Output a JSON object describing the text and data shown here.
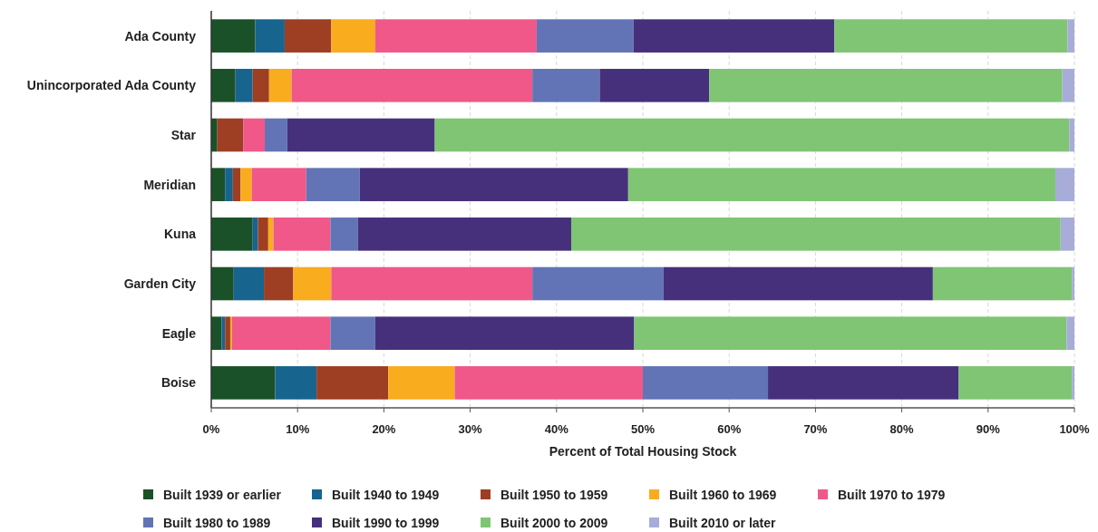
{
  "chart_data": {
    "type": "bar",
    "orientation": "horizontal",
    "stacked": true,
    "xlabel": "Percent of Total Housing Stock",
    "categories": [
      "Ada County",
      "Unincorporated Ada County",
      "Star",
      "Meridian",
      "Kuna",
      "Garden City",
      "Eagle",
      "Boise"
    ],
    "series": [
      {
        "name": "Built 1939 or earlier",
        "color": "#1b5128",
        "values": [
          5.1,
          2.8,
          0.7,
          1.6,
          4.8,
          2.6,
          1.2,
          7.4
        ]
      },
      {
        "name": "Built 1940 to 1949",
        "color": "#17648f",
        "values": [
          3.4,
          2.0,
          0,
          0.9,
          0.6,
          3.5,
          0.4,
          4.8
        ]
      },
      {
        "name": "Built 1950 to 1959",
        "color": "#9e3e22",
        "values": [
          5.4,
          1.9,
          3.0,
          0.9,
          1.2,
          3.4,
          0.6,
          8.3
        ]
      },
      {
        "name": "Built 1960 to 1969",
        "color": "#f8ac1e",
        "values": [
          5.1,
          2.6,
          0,
          1.3,
          0.6,
          4.4,
          0.2,
          7.7
        ]
      },
      {
        "name": "Built 1970 to 1979",
        "color": "#ef5888",
        "values": [
          18.7,
          27.9,
          2.5,
          6.3,
          6.6,
          23.3,
          11.4,
          21.8
        ]
      },
      {
        "name": "Built 1980 to 1989",
        "color": "#6274b6",
        "values": [
          11.2,
          7.8,
          2.6,
          6.2,
          3.2,
          15.2,
          5.2,
          14.5
        ]
      },
      {
        "name": "Built 1990 to 1999",
        "color": "#46307c",
        "values": [
          23.3,
          12.7,
          17.1,
          31.1,
          24.7,
          31.2,
          30.0,
          22.1
        ]
      },
      {
        "name": "Built 2000 to 2009",
        "color": "#7fc574",
        "values": [
          27.0,
          40.9,
          73.5,
          49.5,
          56.7,
          16.1,
          50.1,
          13.1
        ]
      },
      {
        "name": "Built 2010 or later",
        "color": "#a8acd8",
        "values": [
          0.8,
          1.4,
          0.6,
          2.2,
          1.6,
          0.3,
          0.9,
          0.3
        ]
      }
    ],
    "xlim": [
      0,
      100
    ],
    "xticks": [
      {
        "value": 0,
        "label": "0%"
      },
      {
        "value": 10,
        "label": "10%"
      },
      {
        "value": 20,
        "label": "20%"
      },
      {
        "value": 30,
        "label": "30%"
      },
      {
        "value": 40,
        "label": "40%"
      },
      {
        "value": 50,
        "label": "50%"
      },
      {
        "value": 60,
        "label": "60%"
      },
      {
        "value": 70,
        "label": "70%"
      },
      {
        "value": 80,
        "label": "80%"
      },
      {
        "value": 90,
        "label": "90%"
      },
      {
        "value": 100,
        "label": "100%"
      }
    ],
    "grid": "x",
    "legend": "bottom"
  }
}
